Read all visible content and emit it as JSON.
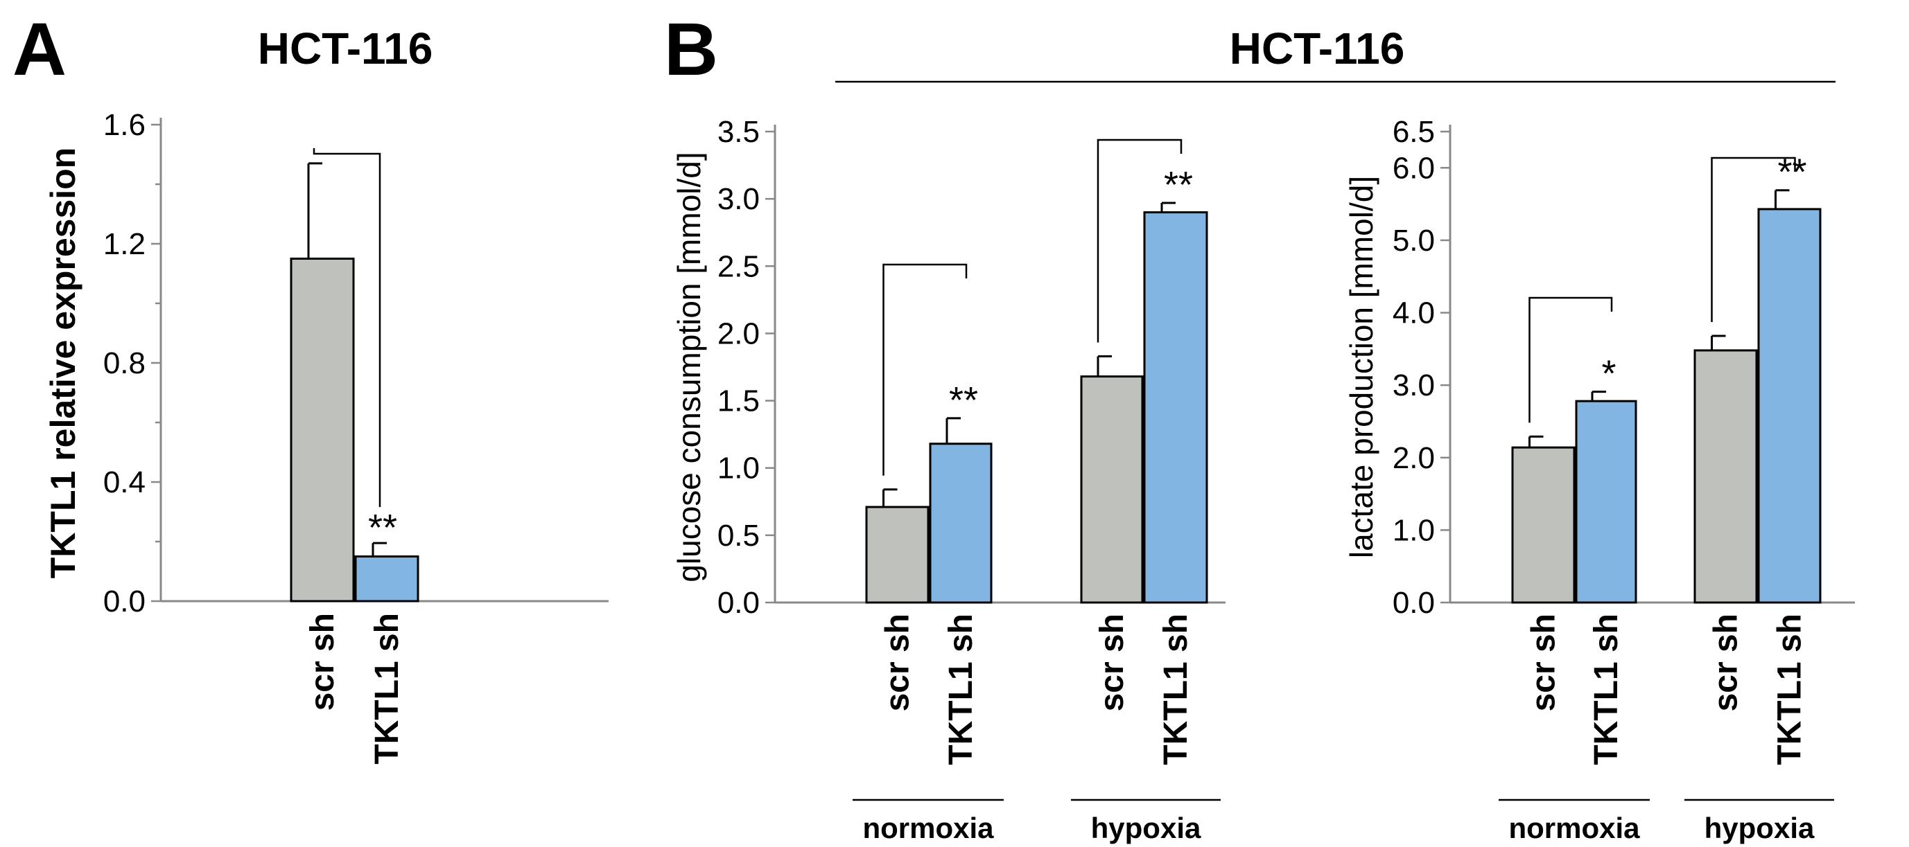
{
  "figure": {
    "panel_a_letter": "A",
    "panel_b_letter": "B",
    "panel_a_title": "HCT-116",
    "panel_b_title": "HCT-116"
  },
  "chart_data": [
    {
      "type": "bar",
      "panel": "A",
      "title": "HCT-116",
      "ylabel": "TKTL1 relative expression",
      "ylim": [
        0,
        1.6
      ],
      "yticks": [
        "0.0",
        "0.4",
        "0.8",
        "1.2",
        "1.6"
      ],
      "grid": false,
      "categories": [
        "scr sh",
        "TKTL1 sh"
      ],
      "values": [
        1.15,
        0.15
      ],
      "errors": [
        0.32,
        0.045
      ],
      "bar_colors": [
        "#bfc1bd",
        "#82b5e2"
      ],
      "significance": [
        {
          "bar": 1,
          "label": "**",
          "compare": [
            0,
            1
          ]
        }
      ]
    },
    {
      "type": "bar",
      "panel": "B",
      "ylabel": "glucose consumption [mmol/d]",
      "ylim": [
        0,
        3.5
      ],
      "yticks": [
        "0.0",
        "0.5",
        "1.0",
        "1.5",
        "2.0",
        "2.5",
        "3.0",
        "3.5"
      ],
      "grid": false,
      "groups": [
        {
          "name": "normoxia",
          "categories": [
            "scr sh",
            "TKTL1 sh"
          ],
          "values": [
            0.71,
            1.18
          ],
          "errors": [
            0.13,
            0.19
          ]
        },
        {
          "name": "hypoxia",
          "categories": [
            "scr sh",
            "TKTL1 sh"
          ],
          "values": [
            1.68,
            2.9
          ],
          "errors": [
            0.15,
            0.07
          ]
        }
      ],
      "bar_colors": [
        "#bfc1bd",
        "#82b5e2"
      ],
      "significance": [
        {
          "group": 0,
          "bar": 1,
          "label": "**"
        },
        {
          "group": 1,
          "bar": 1,
          "label": "**"
        }
      ]
    },
    {
      "type": "bar",
      "panel": "B",
      "ylabel": "lactate production [mmol/d]",
      "ylim": [
        0,
        6.5
      ],
      "yticks": [
        "0.0",
        "1.0",
        "2.0",
        "3.0",
        "4.0",
        "5.0",
        "6.0",
        "6.5"
      ],
      "grid": false,
      "groups": [
        {
          "name": "normoxia",
          "categories": [
            "scr sh",
            "TKTL1 sh"
          ],
          "values": [
            2.14,
            2.78
          ],
          "errors": [
            0.15,
            0.13
          ]
        },
        {
          "name": "hypoxia",
          "categories": [
            "scr sh",
            "TKTL1 sh"
          ],
          "values": [
            3.48,
            5.43
          ],
          "errors": [
            0.2,
            0.26
          ]
        }
      ],
      "bar_colors": [
        "#bfc1bd",
        "#82b5e2"
      ],
      "significance": [
        {
          "group": 0,
          "bar": 1,
          "label": "*"
        },
        {
          "group": 1,
          "bar": 1,
          "label": "**"
        }
      ]
    }
  ]
}
